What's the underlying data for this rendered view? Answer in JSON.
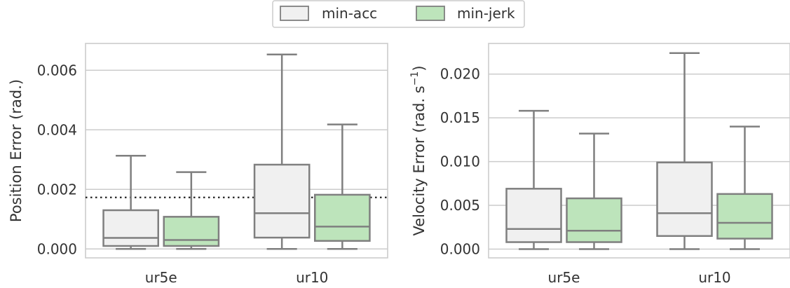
{
  "legend": {
    "placement": "top-center",
    "items": [
      {
        "label": "min-acc",
        "color": "#f0f0f0"
      },
      {
        "label": "min-jerk",
        "color": "#bde4bb"
      }
    ]
  },
  "chart_data": [
    {
      "type": "box",
      "ylabel": "Position Error (rad.)",
      "ylim": [
        -0.0003,
        0.0069
      ],
      "yticks": [
        "0.000",
        "0.002",
        "0.004",
        "0.006"
      ],
      "ytick_values": [
        0,
        0.002,
        0.004,
        0.006
      ],
      "grid": true,
      "categories": [
        "ur5e",
        "ur10"
      ],
      "reference_line": 0.00173,
      "series": [
        {
          "name": "min-acc",
          "color": "#f0f0f0",
          "boxes": [
            {
              "whislo": 0,
              "q1": 0.0001,
              "med": 0.00037,
              "q3": 0.0013,
              "whishi": 0.00313
            },
            {
              "whislo": 0,
              "q1": 0.00038,
              "med": 0.0012,
              "q3": 0.00283,
              "whishi": 0.00653
            }
          ]
        },
        {
          "name": "min-jerk",
          "color": "#bde4bb",
          "boxes": [
            {
              "whislo": 0,
              "q1": 0.0001,
              "med": 0.0003,
              "q3": 0.00108,
              "whishi": 0.00258
            },
            {
              "whislo": 0,
              "q1": 0.00027,
              "med": 0.00075,
              "q3": 0.00182,
              "whishi": 0.00418
            }
          ]
        }
      ]
    },
    {
      "type": "box",
      "ylabel": "Velocity Error (rad. s",
      "ylabel_sup": "−1",
      "ylabel_close": ")",
      "ylim": [
        -0.001,
        0.0235
      ],
      "yticks": [
        "0.000",
        "0.005",
        "0.010",
        "0.015",
        "0.020"
      ],
      "ytick_values": [
        0,
        0.005,
        0.01,
        0.015,
        0.02
      ],
      "grid": true,
      "categories": [
        "ur5e",
        "ur10"
      ],
      "series": [
        {
          "name": "min-acc",
          "color": "#f0f0f0",
          "boxes": [
            {
              "whislo": 0,
              "q1": 0.0008,
              "med": 0.0023,
              "q3": 0.0069,
              "whishi": 0.0158
            },
            {
              "whislo": 0,
              "q1": 0.0015,
              "med": 0.0041,
              "q3": 0.0099,
              "whishi": 0.0224
            }
          ]
        },
        {
          "name": "min-jerk",
          "color": "#bde4bb",
          "boxes": [
            {
              "whislo": 0,
              "q1": 0.0008,
              "med": 0.0021,
              "q3": 0.0058,
              "whishi": 0.0132
            },
            {
              "whislo": 0,
              "q1": 0.0012,
              "med": 0.003,
              "q3": 0.0063,
              "whishi": 0.014
            }
          ]
        }
      ]
    }
  ]
}
